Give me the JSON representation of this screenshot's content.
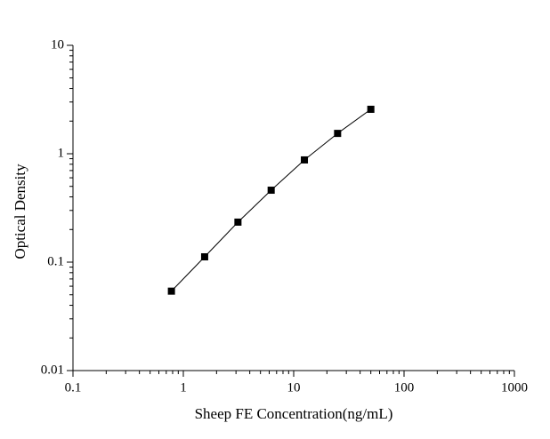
{
  "chart_data": {
    "type": "scatter",
    "x_label": "Sheep FE Concentration(ng/mL)",
    "y_label": "Optical Density",
    "series": [
      {
        "x": [
          0.78,
          1.56,
          3.125,
          6.25,
          12.5,
          25,
          50
        ],
        "values": [
          0.054,
          0.112,
          0.234,
          0.461,
          0.877,
          1.54,
          2.57
        ],
        "color": "#000000"
      }
    ],
    "xlim": [
      0.1,
      1000
    ],
    "ylim": [
      0.01,
      10
    ],
    "xticks": [
      0.1,
      1,
      10,
      100,
      1000
    ],
    "yticks": [
      0.01,
      0.1,
      1,
      10
    ],
    "xscale": "log",
    "yscale": "log",
    "connect": true
  }
}
